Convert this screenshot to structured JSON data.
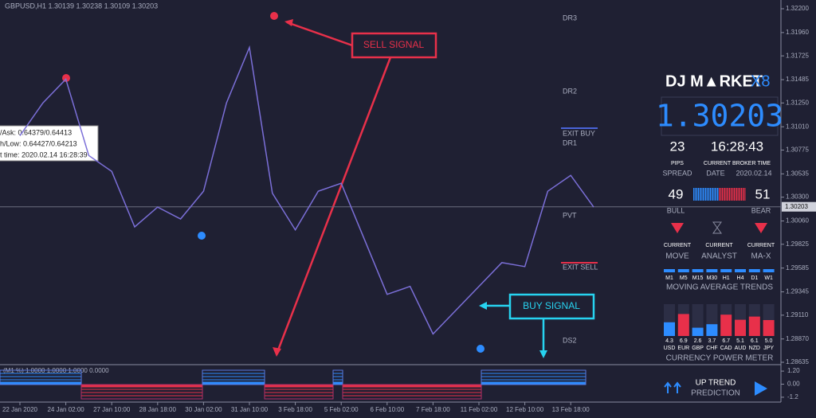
{
  "header": {
    "symbol": "GBPUSD,H1  1.30139 1.30238 1.30109 1.30203"
  },
  "tooltip": [
    "/Ask:  0.64379/0.64413",
    "h/Low: 0.64427/0.64213",
    "t time: 2020.02.14 16:28:39"
  ],
  "chart_data": {
    "type": "line",
    "color": "#7b6fd8",
    "categories": [
      "22 Jan 2020",
      null,
      "24 Jan 02:00",
      null,
      "27 Jan 10:00",
      null,
      "28 Jan 18:00",
      null,
      "30 Jan 02:00",
      null,
      "31 Jan 10:00",
      null,
      "3 Feb 18:00",
      null,
      "5 Feb 02:00",
      null,
      "6 Feb 10:00",
      null,
      "7 Feb 18:00",
      null,
      "11 Feb 02:00",
      null,
      "12 Feb 10:00",
      null,
      "13 Feb 18:00",
      null
    ],
    "values": [
      1.3092,
      1.3125,
      1.3149,
      1.3072,
      1.3056,
      1.3,
      1.302,
      1.3008,
      1.3036,
      1.3125,
      1.3181,
      1.3034,
      1.2997,
      1.3036,
      1.3044,
      1.2988,
      1.2932,
      1.294,
      1.2892,
      1.2916,
      1.294,
      1.2964,
      1.296,
      1.3036,
      1.3052,
      1.302
    ],
    "ylim": [
      1.28635,
      1.322
    ],
    "yticks": [
      {
        "value": 1.322,
        "label": "1.32200"
      },
      {
        "value": 1.3196,
        "label": "1.31960"
      },
      {
        "value": 1.31725,
        "label": "1.31725"
      },
      {
        "value": 1.31485,
        "label": "1.31485"
      },
      {
        "value": 1.3125,
        "label": "1.31250"
      },
      {
        "value": 1.3101,
        "label": "1.31010"
      },
      {
        "value": 1.30775,
        "label": "1.30775"
      },
      {
        "value": 1.30535,
        "label": "1.30535"
      },
      {
        "value": 1.303,
        "label": "1.30300"
      },
      {
        "value": 1.3006,
        "label": "1.30060"
      },
      {
        "value": 1.29825,
        "label": "1.29825"
      },
      {
        "value": 1.29585,
        "label": "1.29585"
      },
      {
        "value": 1.29345,
        "label": "1.29345"
      },
      {
        "value": 1.2911,
        "label": "1.29110"
      },
      {
        "value": 1.2887,
        "label": "1.28870"
      },
      {
        "value": 1.28635,
        "label": "1.28635"
      }
    ],
    "current_price": {
      "value": 1.30203,
      "label": "1.30203"
    }
  },
  "pivots": [
    "DR3",
    "DR2",
    "EXIT BUY",
    "DR1",
    "PVT",
    "EXIT SELL",
    "DS2"
  ],
  "annotations": {
    "sell": "SELL SIGNAL",
    "buy": "BUY SIGNAL"
  },
  "indicator": {
    "label": "(M1 %) 1.0000 1.0000 1.0000 0.0000",
    "ylim": [
      -1.5,
      1.5
    ],
    "yticks": [
      {
        "value": 1.2,
        "label": "1.20"
      },
      {
        "value": 0,
        "label": "0.00"
      },
      -1.2
    ]
  },
  "dashboard": {
    "logo": "DJ M▲RKET",
    "version": "X8",
    "price": "1.30203",
    "spread": {
      "value": 23,
      "unit": "PIPS",
      "label": "SPREAD"
    },
    "time": {
      "value": "16:28:43",
      "caption": "CURRENT BROKER TIME",
      "label": "DATE",
      "date": "2020.02.14"
    },
    "bull": {
      "value": 49,
      "label": "BULL"
    },
    "bear": {
      "value": 51,
      "label": "BEAR"
    },
    "signals": [
      {
        "caption": "CURRENT",
        "label": "MOVE"
      },
      {
        "caption": "CURRENT",
        "label": "ANALYST"
      },
      {
        "caption": "CURRENT",
        "label": "MA-X"
      }
    ],
    "timeframes": [
      "M1",
      "M5",
      "M15",
      "M30",
      "H1",
      "H4",
      "D1",
      "W1"
    ],
    "trends_title": "MOVING  AVERAGE  TRENDS",
    "currencies": [
      {
        "code": "USD",
        "value": 4.3
      },
      {
        "code": "EUR",
        "value": 6.9
      },
      {
        "code": "GBP",
        "value": 2.6
      },
      {
        "code": "CHF",
        "value": 3.7
      },
      {
        "code": "CAD",
        "value": 6.7
      },
      {
        "code": "AUD",
        "value": 5.1
      },
      {
        "code": "NZD",
        "value": 6.1
      },
      {
        "code": "JPY",
        "value": 5,
        "label": "5.0"
      }
    ],
    "meter_title": "CURRENCY  POWER  METER",
    "prediction": [
      "UP TREND",
      "PREDICTION"
    ]
  }
}
